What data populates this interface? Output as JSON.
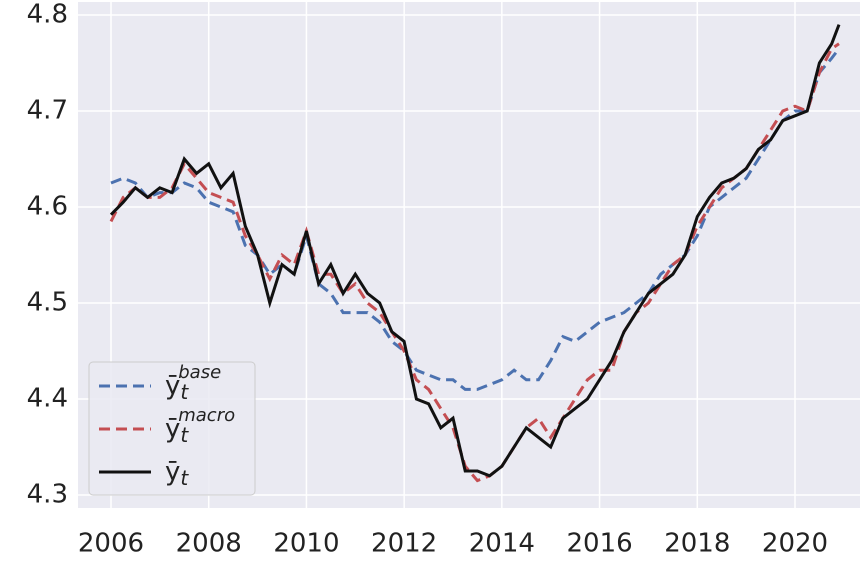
{
  "chart_data": {
    "type": "line",
    "x": [
      2006,
      2006.25,
      2006.5,
      2006.75,
      2007,
      2007.25,
      2007.5,
      2007.75,
      2008,
      2008.25,
      2008.5,
      2008.75,
      2009,
      2009.25,
      2009.5,
      2009.75,
      2010,
      2010.25,
      2010.5,
      2010.75,
      2011,
      2011.25,
      2011.5,
      2011.75,
      2012,
      2012.25,
      2012.5,
      2012.75,
      2013,
      2013.25,
      2013.5,
      2013.75,
      2014,
      2014.25,
      2014.5,
      2014.75,
      2015,
      2015.25,
      2015.5,
      2015.75,
      2016,
      2016.25,
      2016.5,
      2016.75,
      2017,
      2017.25,
      2017.5,
      2017.75,
      2018,
      2018.25,
      2018.5,
      2018.75,
      2019,
      2019.25,
      2019.5,
      2019.75,
      2020,
      2020.25,
      2020.5,
      2020.75,
      2020.9
    ],
    "series": [
      {
        "name": "ȳ_t^base",
        "color": "#4c72b0",
        "dash": true,
        "values": [
          4.625,
          4.63,
          4.625,
          4.61,
          4.615,
          4.615,
          4.625,
          4.62,
          4.605,
          4.6,
          4.595,
          4.56,
          4.55,
          4.53,
          4.54,
          4.53,
          4.57,
          4.52,
          4.51,
          4.49,
          4.49,
          4.49,
          4.48,
          4.46,
          4.45,
          4.43,
          4.425,
          4.42,
          4.42,
          4.41,
          4.41,
          4.415,
          4.42,
          4.43,
          4.42,
          4.42,
          4.44,
          4.465,
          4.46,
          4.47,
          4.48,
          4.485,
          4.49,
          4.5,
          4.51,
          4.53,
          4.54,
          4.55,
          4.57,
          4.6,
          4.61,
          4.62,
          4.63,
          4.65,
          4.67,
          4.69,
          4.7,
          4.7,
          4.74,
          4.755,
          4.765
        ]
      },
      {
        "name": "ȳ_t^macro",
        "color": "#c44e52",
        "dash": true,
        "values": [
          4.585,
          4.61,
          4.62,
          4.61,
          4.61,
          4.62,
          4.645,
          4.63,
          4.615,
          4.61,
          4.605,
          4.57,
          4.55,
          4.525,
          4.55,
          4.54,
          4.575,
          4.53,
          4.53,
          4.51,
          4.52,
          4.5,
          4.49,
          4.47,
          4.45,
          4.42,
          4.41,
          4.39,
          4.37,
          4.33,
          4.315,
          4.32,
          4.33,
          4.35,
          4.37,
          4.38,
          4.36,
          4.38,
          4.4,
          4.42,
          4.43,
          4.43,
          4.47,
          4.49,
          4.5,
          4.52,
          4.54,
          4.55,
          4.58,
          4.6,
          4.62,
          4.63,
          4.64,
          4.66,
          4.68,
          4.7,
          4.705,
          4.7,
          4.74,
          4.765,
          4.77
        ]
      },
      {
        "name": "ȳ_t",
        "color": "#111111",
        "dash": false,
        "values": [
          4.592,
          4.605,
          4.62,
          4.61,
          4.62,
          4.615,
          4.65,
          4.635,
          4.645,
          4.62,
          4.635,
          4.58,
          4.55,
          4.5,
          4.54,
          4.53,
          4.575,
          4.52,
          4.54,
          4.51,
          4.53,
          4.51,
          4.5,
          4.47,
          4.46,
          4.4,
          4.395,
          4.37,
          4.38,
          4.325,
          4.325,
          4.32,
          4.33,
          4.35,
          4.37,
          4.36,
          4.35,
          4.38,
          4.39,
          4.4,
          4.42,
          4.44,
          4.47,
          4.49,
          4.51,
          4.52,
          4.53,
          4.55,
          4.59,
          4.61,
          4.625,
          4.63,
          4.64,
          4.66,
          4.67,
          4.69,
          4.695,
          4.7,
          4.75,
          4.77,
          4.79
        ]
      }
    ],
    "xlim": [
      2005.325,
      2021.33
    ],
    "xticks": [
      2006,
      2008,
      2010,
      2012,
      2014,
      2016,
      2018,
      2020
    ],
    "ylim": [
      4.2865,
      4.8135
    ],
    "yticks": [
      4.3,
      4.4,
      4.5,
      4.6,
      4.7,
      4.8
    ],
    "grid": true,
    "legend": "lower left"
  }
}
